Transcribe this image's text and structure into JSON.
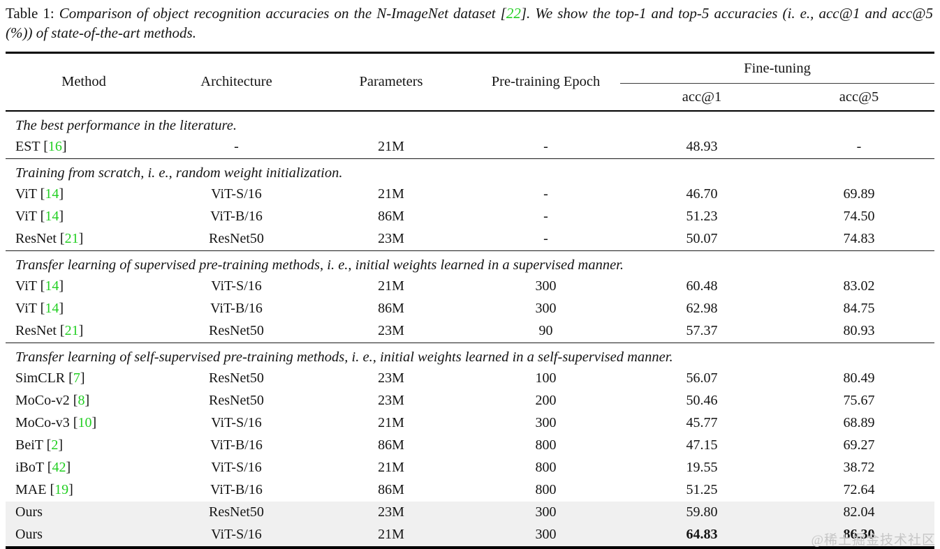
{
  "caption": {
    "label": "Table 1: ",
    "text_before_cite": "Comparison of object recognition accuracies on the N-ImageNet dataset [",
    "cite": "22",
    "text_after_cite": "]. We show the top-1 and top-5 accuracies (i. e., acc@1 and acc@5 (%)) of state-of-the-art methods."
  },
  "colors": {
    "accent_green": "#22cf22",
    "highlight_row_bg": "#f0f0f0",
    "rule_color": "#000000",
    "watermark_color": "#c6c6c6"
  },
  "table": {
    "headers": [
      "Method",
      "Architecture",
      "Parameters",
      "Pre-training Epoch"
    ],
    "spanner": "Fine-tuning",
    "sub_headers": [
      "acc@1",
      "acc@5"
    ],
    "sections": [
      {
        "label": "The best performance in the literature.",
        "rows": [
          {
            "method": "EST",
            "cite": "16",
            "arch": "-",
            "params": "21M",
            "epoch": "-",
            "acc1": "48.93",
            "acc5": "-"
          }
        ]
      },
      {
        "label": "Training from scratch, i. e., random weight initialization.",
        "rows": [
          {
            "method": "ViT",
            "cite": "14",
            "arch": "ViT-S/16",
            "params": "21M",
            "epoch": "-",
            "acc1": "46.70",
            "acc5": "69.89"
          },
          {
            "method": "ViT",
            "cite": "14",
            "arch": "ViT-B/16",
            "params": "86M",
            "epoch": "-",
            "acc1": "51.23",
            "acc5": "74.50"
          },
          {
            "method": "ResNet",
            "cite": "21",
            "arch": "ResNet50",
            "params": "23M",
            "epoch": "-",
            "acc1": "50.07",
            "acc5": "74.83"
          }
        ]
      },
      {
        "label": "Transfer learning of supervised pre-training methods, i. e., initial weights learned in a supervised manner.",
        "rows": [
          {
            "method": "ViT",
            "cite": "14",
            "arch": "ViT-S/16",
            "params": "21M",
            "epoch": "300",
            "acc1": "60.48",
            "acc5": "83.02"
          },
          {
            "method": "ViT",
            "cite": "14",
            "arch": "ViT-B/16",
            "params": "86M",
            "epoch": "300",
            "acc1": "62.98",
            "acc5": "84.75"
          },
          {
            "method": "ResNet",
            "cite": "21",
            "arch": "ResNet50",
            "params": "23M",
            "epoch": "90",
            "acc1": "57.37",
            "acc5": "80.93"
          }
        ]
      },
      {
        "label": "Transfer learning of self-supervised pre-training methods, i. e., initial weights learned in a self-supervised manner.",
        "rows": [
          {
            "method": "SimCLR",
            "cite": "7",
            "arch": "ResNet50",
            "params": "23M",
            "epoch": "100",
            "acc1": "56.07",
            "acc5": "80.49"
          },
          {
            "method": "MoCo-v2",
            "cite": "8",
            "arch": "ResNet50",
            "params": "23M",
            "epoch": "200",
            "acc1": "50.46",
            "acc5": "75.67"
          },
          {
            "method": "MoCo-v3",
            "cite": "10",
            "arch": "ViT-S/16",
            "params": "21M",
            "epoch": "300",
            "acc1": "45.77",
            "acc5": "68.89"
          },
          {
            "method": "BeiT",
            "cite": "2",
            "arch": "ViT-B/16",
            "params": "86M",
            "epoch": "800",
            "acc1": "47.15",
            "acc5": "69.27"
          },
          {
            "method": "iBoT",
            "cite": "42",
            "arch": "ViT-S/16",
            "params": "21M",
            "epoch": "800",
            "acc1": "19.55",
            "acc5": "38.72"
          },
          {
            "method": "MAE",
            "cite": "19",
            "arch": "ViT-B/16",
            "params": "86M",
            "epoch": "800",
            "acc1": "51.25",
            "acc5": "72.64"
          },
          {
            "method": "Ours",
            "cite": null,
            "arch": "ResNet50",
            "params": "23M",
            "epoch": "300",
            "acc1": "59.80",
            "acc5": "82.04",
            "highlight": true
          },
          {
            "method": "Ours",
            "cite": null,
            "arch": "ViT-S/16",
            "params": "21M",
            "epoch": "300",
            "acc1": "64.83",
            "acc5": "86.30",
            "highlight": true,
            "bold_acc": true
          }
        ]
      }
    ]
  },
  "watermark": "@稀土掘金技术社区"
}
